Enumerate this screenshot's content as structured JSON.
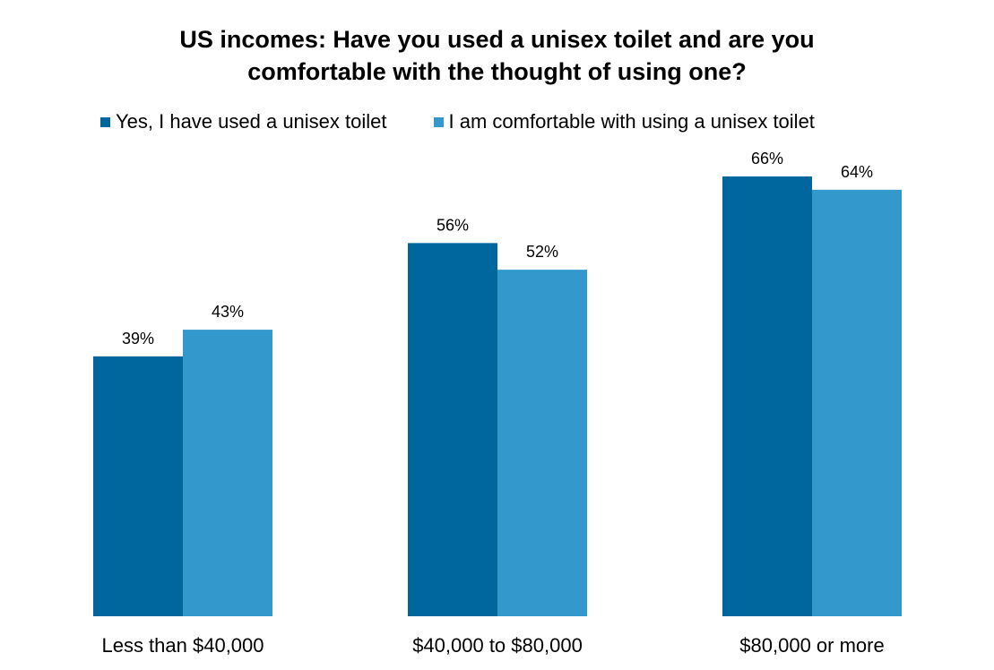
{
  "title": {
    "line1": "US incomes: Have you used a unisex toilet and are you",
    "line2": "comfortable with the thought of using one?"
  },
  "colors": {
    "series_used": "#00669E",
    "series_comfortable": "#3399CC",
    "text": "#000000"
  },
  "chart_data": {
    "type": "bar",
    "title": "US incomes: Have you used a unisex toilet and are you comfortable with the thought of using one?",
    "categories": [
      "Less than $40,000",
      "$40,000 to $80,000",
      "$80,000 or more"
    ],
    "series": [
      {
        "name": "Yes, I have used a unisex toilet",
        "values": [
          39,
          56,
          66
        ],
        "labels": [
          "39%",
          "56%",
          "66%"
        ]
      },
      {
        "name": "I am comfortable with using a unisex toilet",
        "values": [
          43,
          52,
          64
        ],
        "labels": [
          "43%",
          "52%",
          "64%"
        ]
      }
    ],
    "value_suffix": "%",
    "ylim": [
      0,
      70
    ],
    "grid": false,
    "axes_visible": false,
    "legend_position": "top-left"
  }
}
